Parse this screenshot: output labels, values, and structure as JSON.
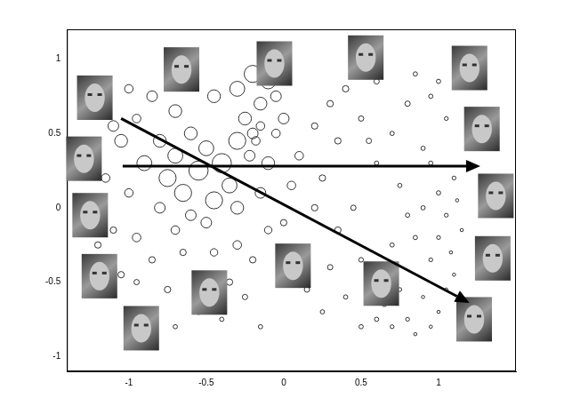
{
  "chart_data": {
    "type": "bubble",
    "color": "#000000",
    "grid": false,
    "xlim": [
      -1.4,
      1.5
    ],
    "xticks": [
      -1,
      -0.5,
      0,
      0.5,
      1
    ],
    "ylim": [
      -1.1,
      1.2
    ],
    "yticks": [
      -1,
      -0.5,
      0,
      0.5,
      1
    ],
    "x": [
      -1.1,
      -1.05,
      -0.95,
      -0.9,
      -0.8,
      -0.75,
      -0.7,
      -0.65,
      -0.6,
      -0.55,
      -0.5,
      -0.45,
      -0.4,
      -0.35,
      -0.3,
      -0.25,
      -0.3,
      -0.45,
      -0.6,
      -0.2,
      -0.1,
      -0.15,
      -0.2,
      -0.18,
      -0.15,
      -0.22,
      -0.1,
      -0.05,
      0,
      -0.3,
      -0.15,
      -0.6,
      -0.8,
      -1.0,
      -1.15,
      -1.2,
      -1.1,
      -0.95,
      -0.7,
      -0.5,
      -0.85,
      -1.0,
      -0.7,
      -0.05,
      0.1,
      0.05,
      0.2,
      0.25,
      -1.15,
      -1.05,
      -0.95,
      -1.1,
      -0.85,
      -0.75,
      -0.65,
      -0.55,
      -0.45,
      -0.35,
      -0.3,
      -0.2,
      -0.1,
      -0.85,
      -0.7,
      -0.55,
      -0.4,
      -0.25,
      -0.15,
      -0.95,
      -1.2,
      0,
      0.1,
      0.15,
      0.25,
      0.3,
      0.35,
      0.45,
      0.2,
      0.4,
      0.5,
      0.4,
      0.5,
      0.6,
      0.7,
      0.8,
      0.85,
      0.9,
      0.95,
      1.0,
      1.05,
      0.6,
      0.75,
      0.55,
      0.35,
      0.3,
      0.95,
      1.0,
      1.05,
      1.1,
      0.9,
      1.0,
      1.08,
      0.95,
      1.1,
      0.85,
      1.12,
      1.15,
      0.8,
      0.7,
      0.55,
      0.65,
      0.75,
      0.8,
      0.9,
      0.95,
      1.0,
      0.7,
      0.6,
      0.85,
      1.05,
      0.5
    ],
    "values": [
      0.55,
      0.45,
      0.6,
      0.3,
      0.45,
      0.2,
      0.35,
      0.1,
      0.5,
      0.25,
      0.4,
      0.05,
      0.3,
      0.15,
      0.45,
      0.6,
      0.8,
      0.75,
      0.85,
      0.9,
      0.85,
      0.7,
      0.5,
      0.45,
      0.55,
      0.35,
      0.3,
      0.5,
      0.6,
      0.0,
      0.1,
      -0.05,
      0.0,
      0.1,
      0.2,
      0.0,
      -0.15,
      -0.2,
      -0.15,
      -0.1,
      0.75,
      0.8,
      0.65,
      0.75,
      0.35,
      0.15,
      0.55,
      0.2,
      -0.35,
      -0.45,
      -0.5,
      -0.55,
      -0.35,
      -0.55,
      -0.3,
      -0.45,
      -0.3,
      -0.5,
      -0.25,
      -0.35,
      -0.15,
      -0.7,
      -0.8,
      -0.7,
      -0.75,
      -0.6,
      -0.8,
      -0.85,
      -0.25,
      -0.1,
      -0.3,
      -0.55,
      -0.7,
      -0.4,
      -0.15,
      0,
      0,
      -0.6,
      -0.8,
      0.8,
      0.6,
      0.85,
      0.5,
      0.7,
      0.9,
      0.4,
      0.75,
      0.85,
      0.6,
      0.3,
      0.15,
      0.45,
      0.45,
      0.7,
      0.3,
      0.1,
      -0.05,
      0.2,
      0,
      -0.2,
      -0.3,
      -0.35,
      -0.45,
      -0.2,
      0.05,
      -0.15,
      -0.05,
      -0.25,
      -0.55,
      -0.65,
      -0.55,
      -0.75,
      -0.6,
      -0.8,
      -0.7,
      -0.8,
      -0.75,
      -0.85,
      -0.55,
      -0.35
    ],
    "sizes": [
      5,
      6,
      4,
      7,
      6,
      8,
      7,
      8,
      6,
      9,
      7,
      8,
      9,
      7,
      8,
      6,
      7,
      6,
      5,
      8,
      7,
      6,
      5,
      4,
      4,
      5,
      6,
      4,
      5,
      6,
      5,
      5,
      5,
      4,
      4,
      3,
      3,
      4,
      4,
      5,
      5,
      4,
      6,
      5,
      4,
      4,
      3,
      3,
      3,
      3,
      2.5,
      2.5,
      3,
      3,
      3,
      3,
      3.5,
      3,
      4,
      3,
      3.5,
      2.5,
      2,
      2.5,
      2,
      2.5,
      2,
      2,
      3,
      3,
      2.5,
      2.5,
      2,
      2.5,
      3,
      2.5,
      3,
      2,
      2,
      3,
      2.5,
      2.5,
      2,
      2.5,
      2,
      2,
      2,
      2,
      1.8,
      2,
      2,
      2.5,
      3,
      3,
      2,
      2,
      1.8,
      1.8,
      2,
      1.8,
      1.5,
      1.8,
      1.5,
      2,
      1.5,
      1.5,
      2,
      2,
      2,
      2,
      1.8,
      1.8,
      1.5,
      1.5,
      1.5,
      1.8,
      2,
      1.5,
      1.5,
      2.2
    ],
    "arrows": [
      {
        "from": [
          -1.04,
          0.28
        ],
        "to": [
          1.27,
          0.28
        ]
      },
      {
        "from": [
          -1.05,
          0.6
        ],
        "to": [
          1.2,
          -0.64
        ]
      }
    ],
    "thumbnails": [
      [
        -1.22,
        0.74
      ],
      [
        -0.66,
        0.93
      ],
      [
        -0.06,
        0.97
      ],
      [
        0.53,
        1.01
      ],
      [
        1.2,
        0.94
      ],
      [
        1.28,
        0.53
      ],
      [
        1.37,
        0.08
      ],
      [
        1.35,
        -0.34
      ],
      [
        1.23,
        -0.75
      ],
      [
        0.63,
        -0.51
      ],
      [
        0.06,
        -0.39
      ],
      [
        -0.48,
        -0.57
      ],
      [
        -0.92,
        -0.81
      ],
      [
        -1.19,
        -0.46
      ],
      [
        -1.25,
        -0.05
      ],
      [
        -1.29,
        0.33
      ]
    ]
  }
}
